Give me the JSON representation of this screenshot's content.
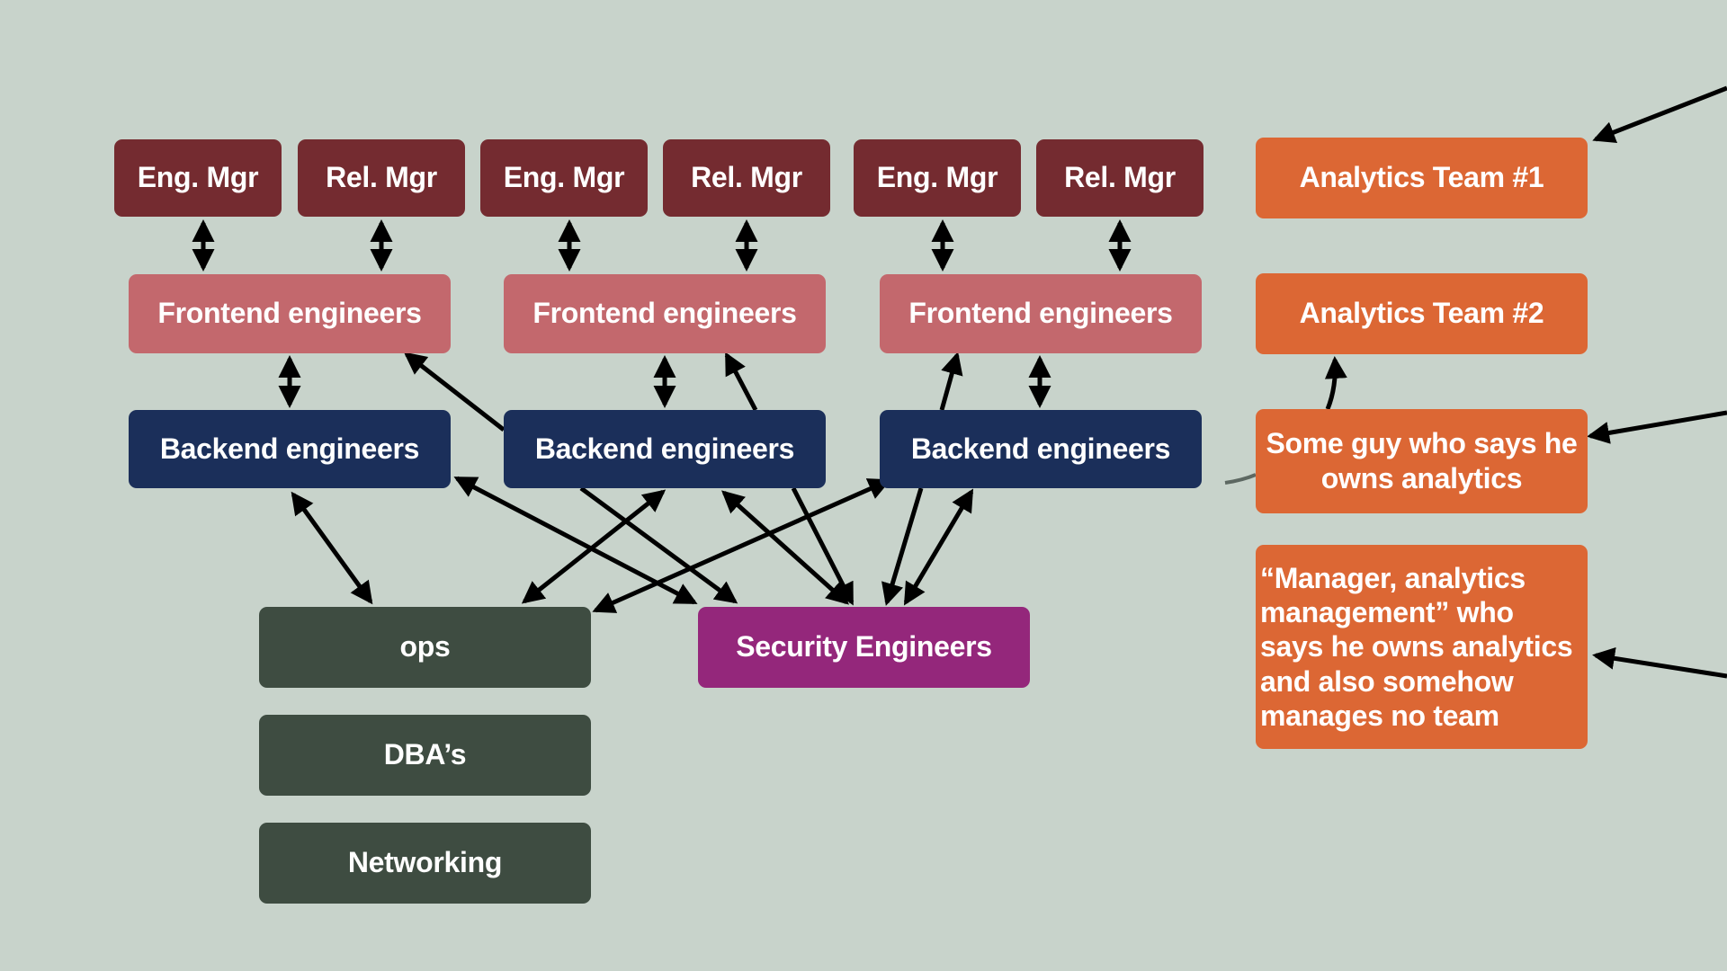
{
  "managers": [
    "Eng. Mgr",
    "Rel. Mgr",
    "Eng. Mgr",
    "Rel. Mgr",
    "Eng. Mgr",
    "Rel. Mgr"
  ],
  "frontend": [
    "Frontend engineers",
    "Frontend engineers",
    "Frontend engineers"
  ],
  "backend": [
    "Backend engineers",
    "Backend engineers",
    "Backend engineers"
  ],
  "ops_teams": [
    "ops",
    "DBA’s",
    "Networking"
  ],
  "security": "Security Engineers",
  "analytics": [
    "Analytics Team #1",
    "Analytics Team #2",
    "Some guy who says he owns analytics",
    "“Manager, analytics management” who says he owns analytics and also somehow manages no team"
  ],
  "colors": {
    "background": "#c8d3cb",
    "manager": "#742b30",
    "frontend": "#c3686d",
    "backend": "#1b2f5a",
    "ops": "#3e4c41",
    "security": "#94277b",
    "analytics": "#dc6734",
    "arrow": "#000000"
  }
}
